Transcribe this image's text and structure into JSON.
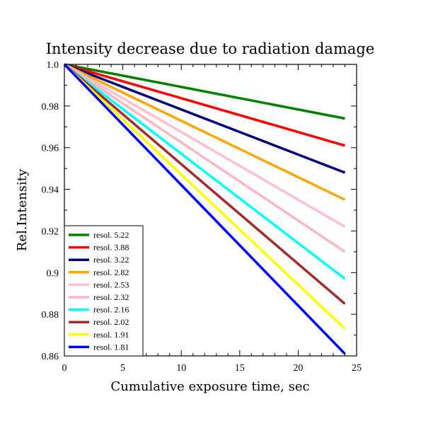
{
  "chart_data": {
    "type": "line",
    "title": "Intensity decrease due to radiation damage",
    "xlabel": "Cumulative exposure time, sec",
    "ylabel": "Rel.Intensity",
    "xlim": [
      0,
      25
    ],
    "ylim": [
      0.86,
      1.0
    ],
    "x_ticks": [
      0,
      5,
      10,
      15,
      20,
      25
    ],
    "x_tick_labels": [
      "0",
      "5",
      "10",
      "15",
      "20",
      "25"
    ],
    "y_ticks": [
      0.86,
      0.88,
      0.9,
      0.92,
      0.94,
      0.96,
      0.98,
      1.0
    ],
    "y_tick_labels": [
      "0.86",
      "0.88",
      "0.9",
      "0.92",
      "0.94",
      "0.96",
      "0.98",
      "1.0"
    ],
    "grid": false,
    "legend_position": "bottom-left",
    "series": [
      {
        "name": "resol. 5.22",
        "color": "#008000",
        "x": [
          0,
          24
        ],
        "y": [
          1.0,
          0.974
        ]
      },
      {
        "name": "resol. 3.88",
        "color": "#ff0000",
        "x": [
          0,
          24
        ],
        "y": [
          1.0,
          0.961
        ]
      },
      {
        "name": "resol. 3.22",
        "color": "#000080",
        "x": [
          0,
          24
        ],
        "y": [
          1.0,
          0.948
        ]
      },
      {
        "name": "resol. 2.82",
        "color": "#ffa500",
        "x": [
          0,
          24
        ],
        "y": [
          1.0,
          0.935
        ]
      },
      {
        "name": "resol. 2.53",
        "color": "#ffc0cb",
        "x": [
          0,
          24
        ],
        "y": [
          1.0,
          0.922
        ]
      },
      {
        "name": "resol. 2.32",
        "color": "#ffb6c1",
        "x": [
          0,
          24
        ],
        "y": [
          1.0,
          0.91
        ]
      },
      {
        "name": "resol. 2.16",
        "color": "#00ffff",
        "x": [
          0,
          24
        ],
        "y": [
          1.0,
          0.897
        ]
      },
      {
        "name": "resol. 2.02",
        "color": "#a52a2a",
        "x": [
          0,
          24
        ],
        "y": [
          1.0,
          0.885
        ]
      },
      {
        "name": "resol. 1.91",
        "color": "#ffff00",
        "x": [
          0,
          24
        ],
        "y": [
          1.0,
          0.873
        ]
      },
      {
        "name": "resol. 1.81",
        "color": "#0000ff",
        "x": [
          0,
          24
        ],
        "y": [
          1.0,
          0.861
        ]
      }
    ]
  }
}
